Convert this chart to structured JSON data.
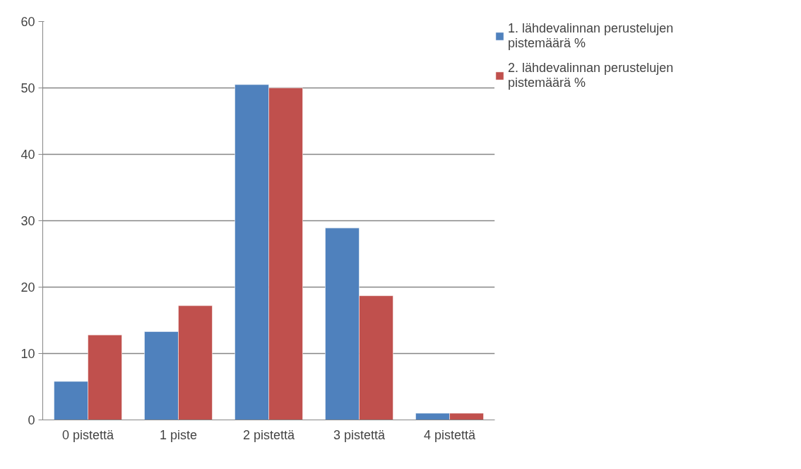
{
  "chart_data": {
    "type": "bar",
    "categories": [
      "0 pistettä",
      "1 piste",
      "2 pistettä",
      "3 pistettä",
      "4 pistettä"
    ],
    "series": [
      {
        "name": "1. lähdevalinnan perustelujen pistemäärä %",
        "color": "#4f81bd",
        "values": [
          5.8,
          13.3,
          50.5,
          28.9,
          1.0
        ]
      },
      {
        "name": "2. lähdevalinnan perustelujen pistemäärä %",
        "color": "#c0504d",
        "values": [
          12.8,
          17.2,
          50.0,
          18.7,
          1.0
        ]
      }
    ],
    "ylim": [
      0,
      60
    ],
    "yticks": [
      0,
      10,
      20,
      30,
      40,
      50,
      60
    ],
    "grid": "y",
    "legend": "right"
  }
}
